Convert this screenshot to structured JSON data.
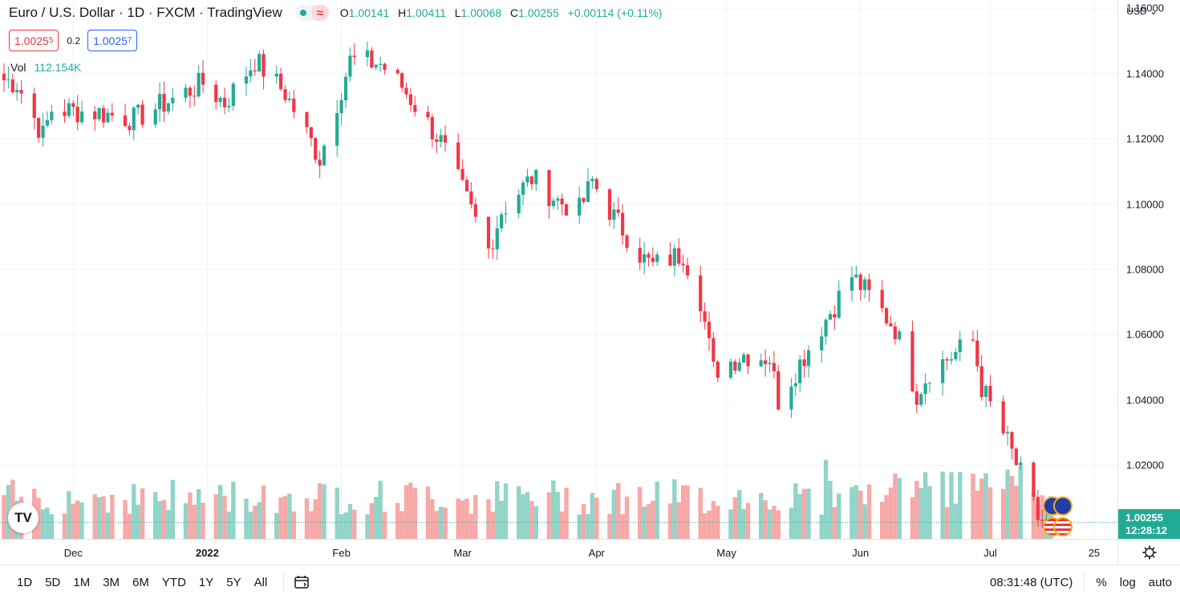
{
  "symbol": {
    "name": "Euro / U.S. Dollar",
    "interval": "1D",
    "exchange": "FXCM",
    "source": "TradingView"
  },
  "ohlc": {
    "o_label": "O",
    "o_value": "1.00141",
    "h_label": "H",
    "h_value": "1.00411",
    "l_label": "L",
    "l_value": "1.00068",
    "c_label": "C",
    "c_value": "1.00255",
    "change": "+0.00114 (+0.11%)"
  },
  "quote": {
    "sell_main": "1.0025",
    "sell_pip": "5",
    "spread": "0.2",
    "buy_main": "1.0025",
    "buy_pip": "7"
  },
  "volume": {
    "label": "Vol",
    "value": "112.154K"
  },
  "currency": "USD",
  "price_tag": {
    "price": "1.00255",
    "countdown": "12:28:12"
  },
  "colors": {
    "up": "#22ab94",
    "down": "#f23645",
    "vol_up": "#91d4c8",
    "vol_down": "#f7a9a7"
  },
  "logo_text": "TV",
  "time_labels": [
    {
      "text": "Dec",
      "bold": false
    },
    {
      "text": "2022",
      "bold": true
    },
    {
      "text": "Feb",
      "bold": false
    },
    {
      "text": "Mar",
      "bold": false
    },
    {
      "text": "Apr",
      "bold": false
    },
    {
      "text": "May",
      "bold": false
    },
    {
      "text": "Jun",
      "bold": false
    },
    {
      "text": "Jul",
      "bold": false
    },
    {
      "text": "25",
      "bold": false
    }
  ],
  "bottom_bar": {
    "ranges": [
      "1D",
      "5D",
      "1M",
      "3M",
      "6M",
      "YTD",
      "1Y",
      "5Y",
      "All"
    ],
    "clock": "08:31:48 (UTC)",
    "percent": "%",
    "log": "log",
    "auto": "auto"
  },
  "chart_data": {
    "type": "candlestick",
    "y_ticks": [
      "1.16000",
      "1.14000",
      "1.12000",
      "1.10000",
      "1.08000",
      "1.06000",
      "1.04000",
      "1.02000"
    ],
    "ylim": [
      0.9975,
      1.1625
    ],
    "last_price": 1.00255,
    "anchors": [
      [
        "2021-11-15",
        1.138
      ],
      [
        "2021-11-18",
        1.137
      ],
      [
        "2021-11-24",
        1.121
      ],
      [
        "2021-11-26",
        1.129
      ],
      [
        "2021-12-07",
        1.128
      ],
      [
        "2021-12-15",
        1.126
      ],
      [
        "2021-12-31",
        1.137
      ],
      [
        "2022-01-05",
        1.131
      ],
      [
        "2022-01-12",
        1.144
      ],
      [
        "2022-01-19",
        1.134
      ],
      [
        "2022-01-27",
        1.114
      ],
      [
        "2022-02-03",
        1.144
      ],
      [
        "2022-02-10",
        1.143
      ],
      [
        "2022-02-15",
        1.136
      ],
      [
        "2022-02-24",
        1.119
      ],
      [
        "2022-03-07",
        1.086
      ],
      [
        "2022-03-10",
        1.098
      ],
      [
        "2022-03-17",
        1.108
      ],
      [
        "2022-03-23",
        1.101
      ],
      [
        "2022-03-28",
        1.098
      ],
      [
        "2022-03-31",
        1.107
      ],
      [
        "2022-04-05",
        1.096
      ],
      [
        "2022-04-12",
        1.083
      ],
      [
        "2022-04-14",
        1.081
      ],
      [
        "2022-04-21",
        1.085
      ],
      [
        "2022-04-25",
        1.071
      ],
      [
        "2022-04-28",
        1.049
      ],
      [
        "2022-05-05",
        1.054
      ],
      [
        "2022-05-11",
        1.053
      ],
      [
        "2022-05-13",
        1.04
      ],
      [
        "2022-05-20",
        1.056
      ],
      [
        "2022-05-30",
        1.078
      ],
      [
        "2022-06-03",
        1.072
      ],
      [
        "2022-06-09",
        1.062
      ],
      [
        "2022-06-14",
        1.042
      ],
      [
        "2022-06-17",
        1.049
      ],
      [
        "2022-06-27",
        1.058
      ],
      [
        "2022-06-29",
        1.044
      ],
      [
        "2022-07-05",
        1.027
      ],
      [
        "2022-07-12",
        1.004
      ],
      [
        "2022-07-14",
        1.002
      ],
      [
        "2022-07-15",
        1.0026
      ]
    ]
  }
}
